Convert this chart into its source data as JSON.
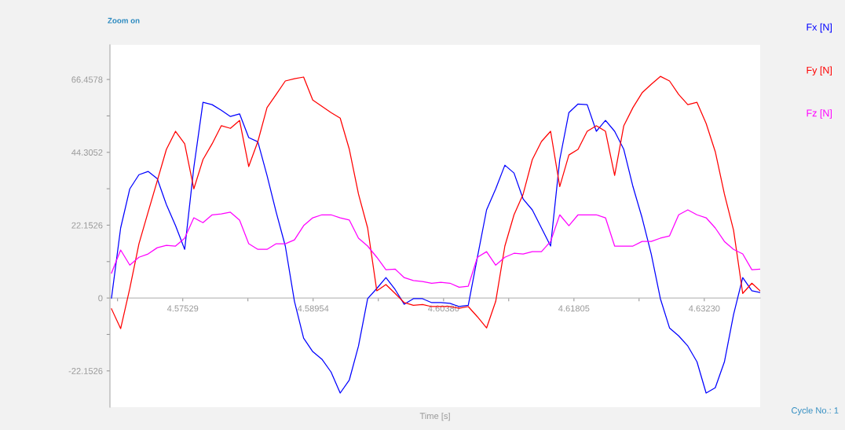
{
  "chart_data": {
    "type": "line",
    "xlabel": "Time [s]",
    "annotations": [
      "Zoom on",
      "Cycle No.: 1"
    ],
    "x": [
      4.5675,
      4.5685,
      4.5695,
      4.5705,
      4.5715,
      4.5725,
      4.5735,
      4.5745,
      4.5755,
      4.5765,
      4.5775,
      4.5785,
      4.5795,
      4.5805,
      4.5815,
      4.5825,
      4.5835,
      4.5845,
      4.5855,
      4.5865,
      4.5875,
      4.5885,
      4.5895,
      4.5905,
      4.5915,
      4.5925,
      4.5935,
      4.5945,
      4.5955,
      4.5965,
      4.5975,
      4.5985,
      4.5995,
      4.6005,
      4.6015,
      4.6025,
      4.6035,
      4.6045,
      4.6055,
      4.6065,
      4.6075,
      4.6085,
      4.6095,
      4.6105,
      4.6115,
      4.6125,
      4.6135,
      4.6145,
      4.6155,
      4.6165,
      4.6175,
      4.6185,
      4.6195,
      4.6205,
      4.6215,
      4.6225,
      4.6235,
      4.6245,
      4.6255,
      4.6265,
      4.6275,
      4.6285,
      4.6295,
      4.6305,
      4.6315,
      4.6325,
      4.6335,
      4.6345,
      4.6355,
      4.6365,
      4.6375,
      4.6384
    ],
    "series": [
      {
        "name": "Fx [N]",
        "color": "#0000ff",
        "values": [
          0,
          21.3,
          33.2,
          37.5,
          38.5,
          36.3,
          28.4,
          22.0,
          14.8,
          39.7,
          59.5,
          58.8,
          57.1,
          55.2,
          56.0,
          48.8,
          47.5,
          37.3,
          26.1,
          15.8,
          -1.0,
          -12.2,
          -16.3,
          -18.6,
          -22.5,
          -28.9,
          -24.9,
          -14.6,
          -0.2,
          2.9,
          6.2,
          2.6,
          -1.9,
          -0.2,
          -0.2,
          -1.4,
          -1.4,
          -1.6,
          -2.6,
          -2.2,
          12.4,
          26.8,
          33.2,
          40.4,
          38.0,
          30.1,
          26.8,
          21.3,
          15.8,
          42.1,
          56.4,
          59.0,
          58.8,
          50.7,
          54.0,
          50.7,
          45.2,
          33.9,
          24.4,
          13.4,
          -0.2,
          -9.1,
          -11.5,
          -14.6,
          -19.4,
          -28.9,
          -27.3,
          -19.4,
          -5.0,
          6.2,
          2.2,
          1.7
        ]
      },
      {
        "name": "Fy [N]",
        "color": "#ff0000",
        "values": [
          -3.3,
          -9.3,
          2.9,
          16.5,
          26.1,
          35.6,
          45.2,
          50.7,
          46.9,
          33.2,
          42.1,
          46.9,
          52.4,
          51.6,
          54.0,
          40.0,
          47.6,
          57.9,
          61.9,
          66.0,
          66.7,
          67.2,
          60.2,
          58.3,
          56.4,
          54.7,
          45.2,
          31.6,
          21.3,
          2.2,
          4.1,
          1.4,
          -1.4,
          -2.2,
          -2.0,
          -2.6,
          -2.6,
          -2.6,
          -3.1,
          -2.6,
          -5.7,
          -9.1,
          -1.0,
          15.8,
          25.3,
          31.6,
          42.1,
          47.6,
          50.7,
          33.9,
          43.5,
          45.2,
          50.7,
          52.4,
          50.7,
          37.3,
          52.4,
          57.9,
          62.4,
          65.0,
          67.4,
          66.0,
          61.9,
          58.8,
          59.5,
          53.1,
          44.5,
          31.6,
          20.6,
          1.4,
          4.5,
          2.2
        ]
      },
      {
        "name": "Fz [N]",
        "color": "#ff00ff",
        "values": [
          7.6,
          14.6,
          10.0,
          12.4,
          13.4,
          15.3,
          16.0,
          15.8,
          18.2,
          24.4,
          22.9,
          25.3,
          25.6,
          26.1,
          23.7,
          16.5,
          14.8,
          14.8,
          16.5,
          16.5,
          17.7,
          22.0,
          24.4,
          25.3,
          25.3,
          24.4,
          23.7,
          18.2,
          15.8,
          12.4,
          8.6,
          8.8,
          6.2,
          5.3,
          5.0,
          4.5,
          4.8,
          4.5,
          3.3,
          3.6,
          12.4,
          14.1,
          10.0,
          12.4,
          13.6,
          13.4,
          14.1,
          14.1,
          17.2,
          25.3,
          22.0,
          25.3,
          25.3,
          25.3,
          24.4,
          15.8,
          15.8,
          15.8,
          17.2,
          17.2,
          18.2,
          18.9,
          25.3,
          26.8,
          25.3,
          24.4,
          21.3,
          17.2,
          14.8,
          13.4,
          8.6,
          8.8
        ]
      }
    ],
    "xlim": [
      4.56733,
      4.63841
    ],
    "xticks": [
      {
        "value": 4.56816,
        "label": null
      },
      4.57529,
      {
        "value": 4.58241,
        "label": null
      },
      4.58954,
      {
        "value": 4.59667,
        "label": null
      },
      {
        "value": 4.6038,
        "label": "4.60380"
      },
      {
        "value": 4.61092,
        "label": null
      },
      4.61805,
      {
        "value": 4.62517,
        "label": null
      },
      {
        "value": 4.6323,
        "label": "4.63230"
      }
    ],
    "ylim": [
      -33.2,
      77.0
    ],
    "yticks": [
      -22.1526,
      {
        "value": -11.0763,
        "label": null
      },
      0,
      {
        "value": 11.0763,
        "label": null
      },
      22.1526,
      {
        "value": 33.2289,
        "label": null
      },
      44.3052,
      {
        "value": 55.3815,
        "label": null
      },
      66.4578
    ],
    "legend": "right",
    "grid": false,
    "marker": "none",
    "line_style": "solid"
  }
}
